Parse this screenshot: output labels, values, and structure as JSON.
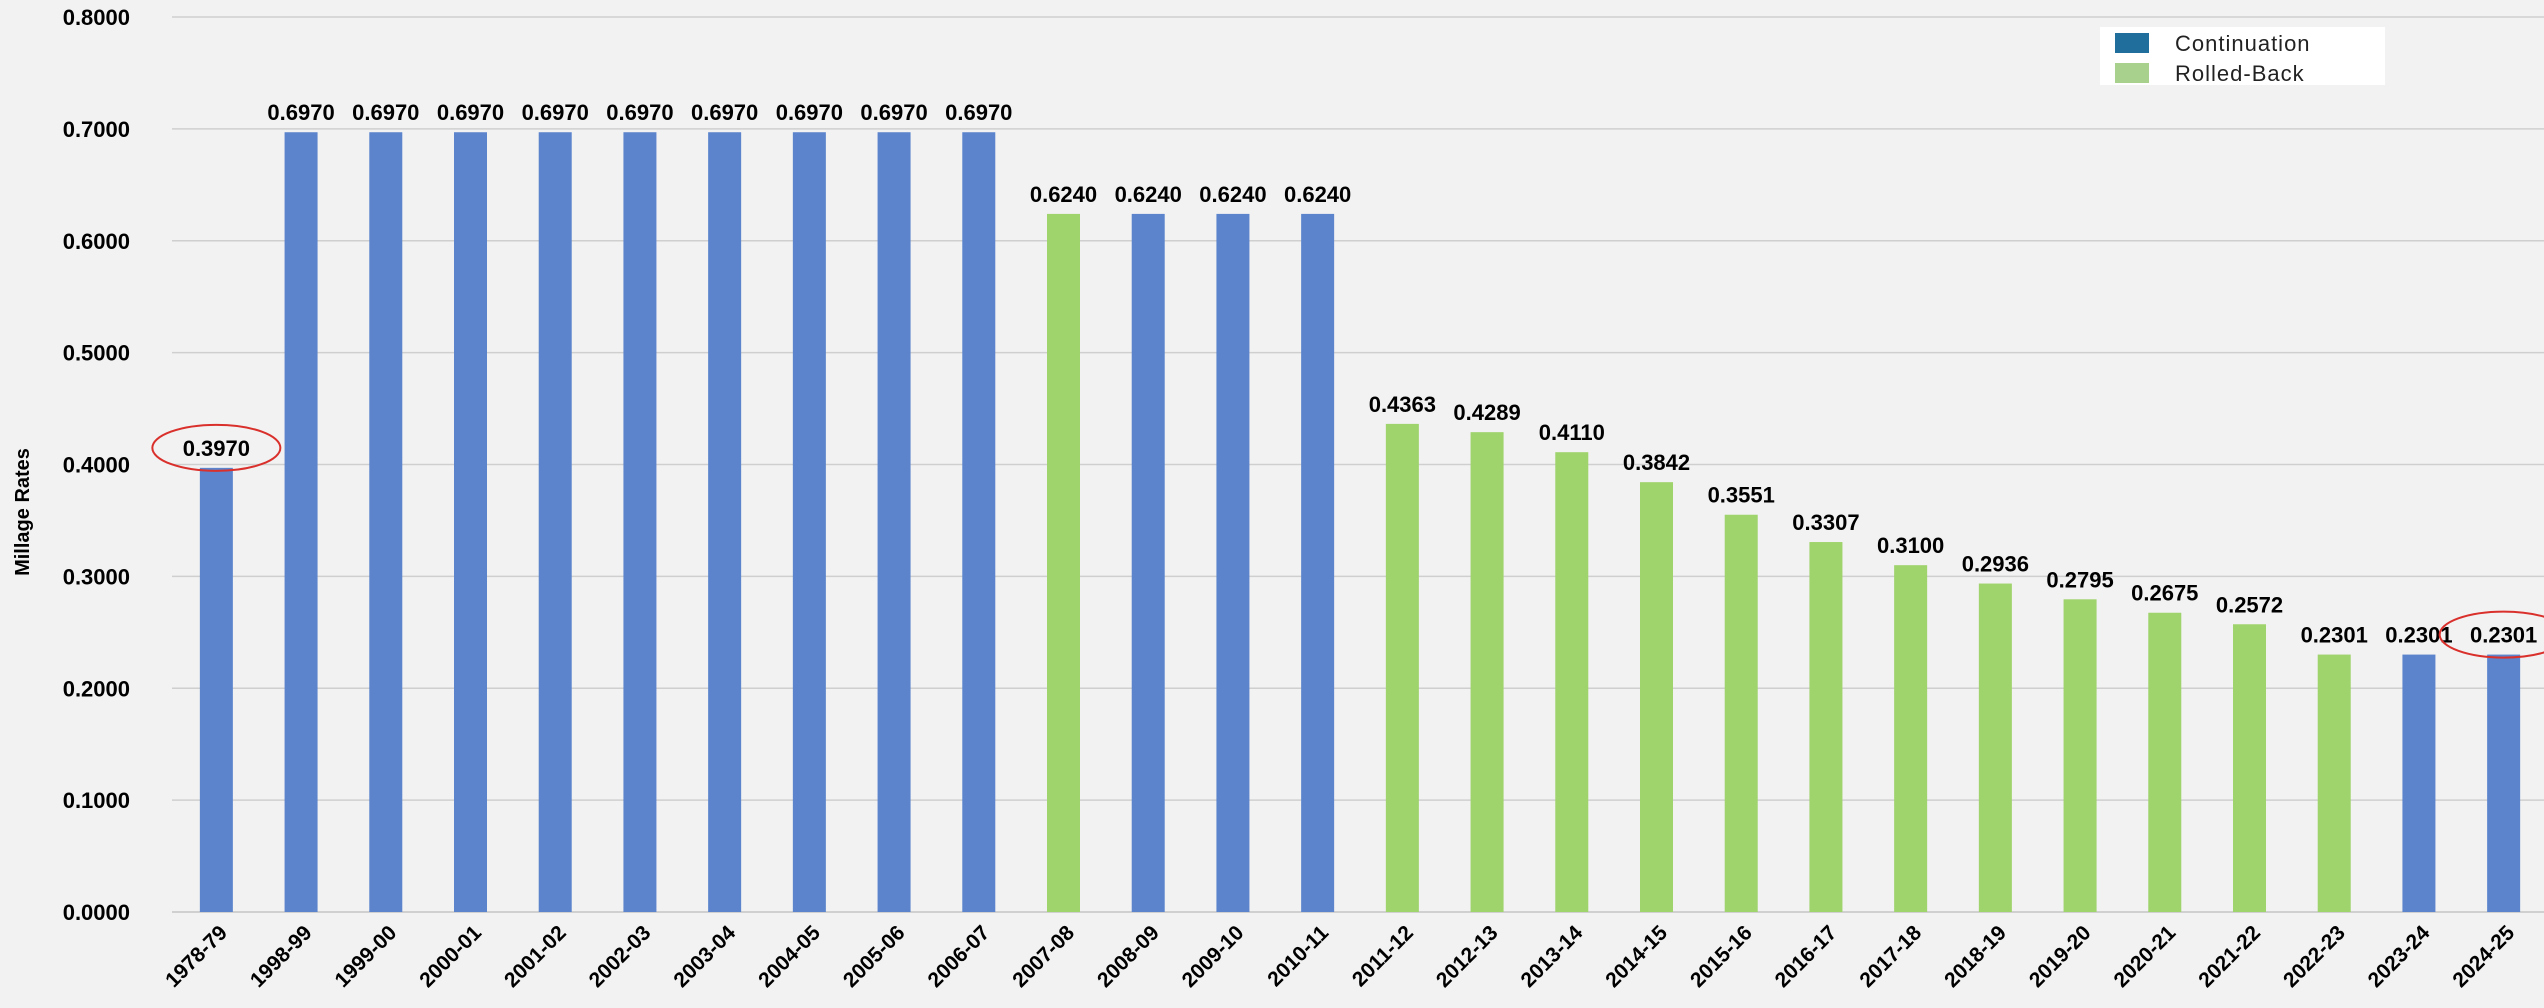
{
  "chart_data": {
    "type": "bar",
    "title": "",
    "xlabel": "",
    "ylabel": "Millage Rates",
    "ylim": [
      0,
      0.8
    ],
    "yticks": [
      "0.0000",
      "0.1000",
      "0.2000",
      "0.3000",
      "0.4000",
      "0.5000",
      "0.6000",
      "0.7000",
      "0.8000"
    ],
    "grid": true,
    "legend_position": "top-right",
    "legend": [
      {
        "label": "Continuation",
        "color": "#1f6e9c"
      },
      {
        "label": "Rolled-Back",
        "color": "#a9d18e"
      }
    ],
    "bar_colors": {
      "Continuation": "#5b84cc",
      "Rolled-Back": "#9fd36b"
    },
    "categories": [
      "1978-79",
      "1998-99",
      "1999-00",
      "2000-01",
      "2001-02",
      "2002-03",
      "2003-04",
      "2004-05",
      "2005-06",
      "2006-07",
      "2007-08",
      "2008-09",
      "2009-10",
      "2010-11",
      "2011-12",
      "2012-13",
      "2013-14",
      "2014-15",
      "2015-16",
      "2016-17",
      "2017-18",
      "2018-19",
      "2019-20",
      "2020-21",
      "2021-22",
      "2022-23",
      "2023-24",
      "2024-25"
    ],
    "values": [
      0.397,
      0.697,
      0.697,
      0.697,
      0.697,
      0.697,
      0.697,
      0.697,
      0.697,
      0.697,
      0.624,
      0.624,
      0.624,
      0.624,
      0.4363,
      0.4289,
      0.411,
      0.3842,
      0.3551,
      0.3307,
      0.31,
      0.2936,
      0.2795,
      0.2675,
      0.2572,
      0.2301,
      0.2301,
      0.2301
    ],
    "labels": [
      "0.3970",
      "0.6970",
      "0.6970",
      "0.6970",
      "0.6970",
      "0.6970",
      "0.6970",
      "0.6970",
      "0.6970",
      "0.6970",
      "0.6240",
      "0.6240",
      "0.6240",
      "0.6240",
      "0.4363",
      "0.4289",
      "0.4110",
      "0.3842",
      "0.3551",
      "0.3307",
      "0.3100",
      "0.2936",
      "0.2795",
      "0.2675",
      "0.2572",
      "0.2301",
      "0.2301",
      "0.2301"
    ],
    "bar_types": [
      "Continuation",
      "Continuation",
      "Continuation",
      "Continuation",
      "Continuation",
      "Continuation",
      "Continuation",
      "Continuation",
      "Continuation",
      "Continuation",
      "Rolled-Back",
      "Continuation",
      "Continuation",
      "Continuation",
      "Rolled-Back",
      "Rolled-Back",
      "Rolled-Back",
      "Rolled-Back",
      "Rolled-Back",
      "Rolled-Back",
      "Rolled-Back",
      "Rolled-Back",
      "Rolled-Back",
      "Rolled-Back",
      "Rolled-Back",
      "Rolled-Back",
      "Continuation",
      "Continuation"
    ],
    "highlighted_categories": [
      "1978-79",
      "2024-25"
    ],
    "highlight_color": "#d9302c"
  }
}
